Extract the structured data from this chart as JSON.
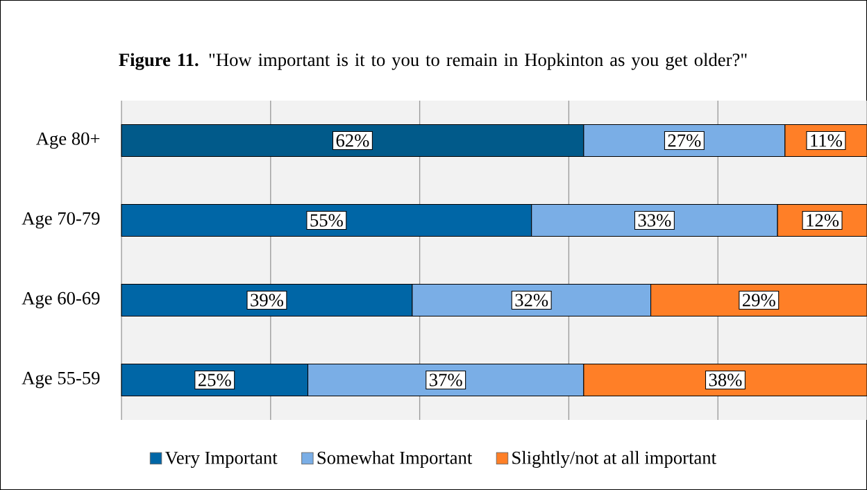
{
  "chart_data": {
    "type": "bar",
    "orientation": "horizontal",
    "stacked": true,
    "title": "**Figure 11.** \"How important is it to you to remain in Hopkinton as you get older?\"",
    "categories": [
      "Age 80+",
      "Age 70-79",
      "Age 60-69",
      "Age 55-59"
    ],
    "series": [
      {
        "name": "Very Important",
        "color": "#0066a6",
        "colors": [
          "#015a8a",
          "#0066a6",
          "#0066a6",
          "#0066a6"
        ],
        "values": [
          62,
          55,
          39,
          25
        ],
        "value_labels": [
          "62%",
          "55%",
          "39%",
          "25%"
        ]
      },
      {
        "name": "Somewhat Important",
        "color": "#7aaee6",
        "values": [
          27,
          33,
          32,
          37
        ],
        "value_labels": [
          "27%",
          "33%",
          "32%",
          "37%"
        ]
      },
      {
        "name": "Slightly/not at all important",
        "color": "#ff7f27",
        "values": [
          11,
          12,
          29,
          38
        ],
        "value_labels": [
          "11%",
          "12%",
          "29%",
          "38%"
        ]
      }
    ],
    "xlim": [
      0,
      100
    ],
    "xticks": [
      {
        "value": 0,
        "label": null
      },
      {
        "value": 20,
        "label": null
      },
      {
        "value": 40,
        "label": null
      },
      {
        "value": 60,
        "label": null
      },
      {
        "value": 80,
        "label": null
      },
      {
        "value": 100,
        "label": null
      }
    ],
    "grid": "x",
    "legend": "bottom",
    "tick_labels": "y"
  }
}
